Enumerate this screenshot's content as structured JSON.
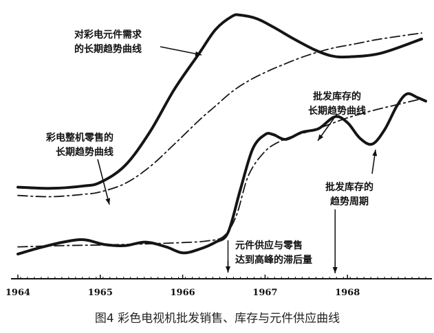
{
  "chart_data": {
    "type": "line",
    "title": "",
    "xlabel": "",
    "ylabel": "",
    "xlim": [
      1963.95,
      1969.0
    ],
    "ylim": [
      0,
      100
    ],
    "x_ticks": [
      1964,
      1965,
      1966,
      1967,
      1968
    ],
    "x_tick_labels": [
      "1964",
      "1965",
      "1966",
      "1967",
      "1968"
    ],
    "grid": false,
    "legend": "none",
    "caption": "图4   彩色电视机批发销售、库存与元件供应曲线",
    "series": [
      {
        "name": "对彩电元件需求的长期趋势曲线",
        "style": "solid-thick",
        "x": [
          1964.0,
          1964.4,
          1964.8,
          1965.0,
          1965.3,
          1965.6,
          1965.9,
          1966.2,
          1966.4,
          1966.6,
          1966.7,
          1966.9,
          1967.1,
          1967.35,
          1967.6,
          1967.8,
          1968.0,
          1968.4,
          1968.9
        ],
        "values": [
          28,
          27.5,
          28.5,
          30,
          37,
          51,
          69,
          84,
          94,
          99.5,
          100,
          98.5,
          95,
          90,
          85.5,
          83,
          82.5,
          84,
          90
        ]
      },
      {
        "name": "彩电整机零售的长期趋势曲线",
        "style": "dash-dot",
        "x": [
          1964.0,
          1964.4,
          1964.8,
          1965.0,
          1965.3,
          1965.6,
          1965.9,
          1966.2,
          1966.4,
          1966.6,
          1966.8,
          1967.0,
          1967.2,
          1967.5,
          1967.8,
          1968.1,
          1968.4,
          1968.9
        ],
        "values": [
          24.5,
          24,
          25,
          26,
          29.5,
          36.5,
          46,
          56,
          62,
          68,
          72.5,
          76,
          79,
          83,
          86,
          88,
          90,
          92.5
        ]
      },
      {
        "name": "批发库存的长期趋势曲线",
        "style": "dash-dot",
        "x": [
          1964.0,
          1964.5,
          1965.0,
          1965.5,
          1966.0,
          1966.3,
          1966.5,
          1966.65,
          1966.8,
          1967.0,
          1967.2,
          1967.4,
          1967.6,
          1967.8,
          1968.0,
          1968.3,
          1968.6,
          1968.9
        ],
        "values": [
          3,
          3.5,
          3.8,
          4.2,
          4.8,
          5.5,
          7.5,
          16,
          33,
          43,
          47.5,
          50,
          52,
          54.5,
          57,
          60,
          62.5,
          65
        ]
      },
      {
        "name": "批发库存的趋势周期",
        "style": "solid-thick",
        "x": [
          1964.0,
          1964.25,
          1964.55,
          1964.8,
          1965.05,
          1965.3,
          1965.55,
          1965.8,
          1966.0,
          1966.2,
          1966.4,
          1966.55,
          1966.7,
          1966.85,
          1967.0,
          1967.1,
          1967.25,
          1967.45,
          1967.65,
          1967.85,
          1968.0,
          1968.15,
          1968.3,
          1968.45,
          1968.6,
          1968.72,
          1968.85,
          1968.95
        ],
        "values": [
          0,
          2.5,
          5,
          6,
          4,
          3.5,
          5,
          3,
          0.5,
          2,
          5,
          9,
          27,
          44,
          50,
          50,
          48,
          51,
          52.5,
          57.5,
          55,
          48.5,
          46,
          52,
          62,
          67,
          65.5,
          64
        ]
      }
    ],
    "annotations": [
      {
        "id": "component-demand",
        "lines": [
          "对彩电元件需求",
          "的长期趋势曲线"
        ]
      },
      {
        "id": "retail-trend",
        "lines": [
          "彩电整机零售的",
          "长期趋势曲线"
        ]
      },
      {
        "id": "inventory-trend",
        "lines": [
          "批发库存的",
          "长期趋势曲线"
        ]
      },
      {
        "id": "inventory-cycle",
        "lines": [
          "批发库存的",
          "趋势周期"
        ]
      },
      {
        "id": "lag",
        "lines": [
          "元件供应与零售",
          "达到高峰的滞后量"
        ]
      }
    ]
  }
}
